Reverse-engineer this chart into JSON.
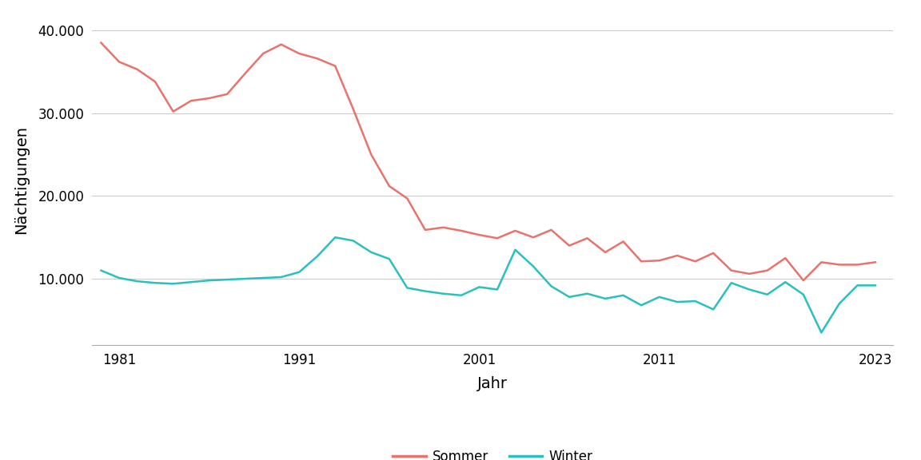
{
  "years": [
    1980,
    1981,
    1982,
    1983,
    1984,
    1985,
    1986,
    1987,
    1988,
    1989,
    1990,
    1991,
    1992,
    1993,
    1994,
    1995,
    1996,
    1997,
    1998,
    1999,
    2000,
    2001,
    2002,
    2003,
    2004,
    2005,
    2006,
    2007,
    2008,
    2009,
    2010,
    2011,
    2012,
    2013,
    2014,
    2015,
    2016,
    2017,
    2018,
    2019,
    2020,
    2021,
    2022,
    2023
  ],
  "sommer": [
    38500,
    36200,
    35300,
    33800,
    30200,
    31500,
    31800,
    32300,
    34800,
    37200,
    38300,
    37200,
    36600,
    35700,
    30500,
    25000,
    21200,
    19700,
    15900,
    16200,
    15800,
    15300,
    14900,
    15800,
    15000,
    15900,
    14000,
    14900,
    13200,
    14500,
    12100,
    12200,
    12800,
    12100,
    13100,
    11000,
    10600,
    11000,
    12500,
    9800,
    12000,
    11700,
    11700,
    12000
  ],
  "winter": [
    11000,
    10100,
    9700,
    9500,
    9400,
    9600,
    9800,
    9900,
    10000,
    10100,
    10200,
    10800,
    12700,
    15000,
    14600,
    13200,
    12400,
    8900,
    8500,
    8200,
    8000,
    9000,
    8700,
    13500,
    11500,
    9100,
    7800,
    8200,
    7600,
    8000,
    6800,
    7800,
    7200,
    7300,
    6300,
    9500,
    8700,
    8100,
    9600,
    8100,
    3500,
    7000,
    9200,
    9200
  ],
  "sommer_color": "#E8736C",
  "winter_color": "#2BBFBF",
  "background_color": "#ffffff",
  "grid_color": "#cccccc",
  "xlabel": "Jahr",
  "ylabel": "Nächtigungen",
  "yticks": [
    10000,
    20000,
    30000,
    40000
  ],
  "ytick_labels": [
    "10.000",
    "20.000",
    "30.000",
    "40.000"
  ],
  "xticks": [
    1981,
    1991,
    2001,
    2011,
    2023
  ],
  "ylim": [
    2000,
    42000
  ],
  "xlim": [
    1979.5,
    2024
  ],
  "legend_labels": [
    "Sommer",
    "Winter"
  ],
  "line_width": 1.8,
  "font_size_ticks": 12,
  "font_size_labels": 14
}
